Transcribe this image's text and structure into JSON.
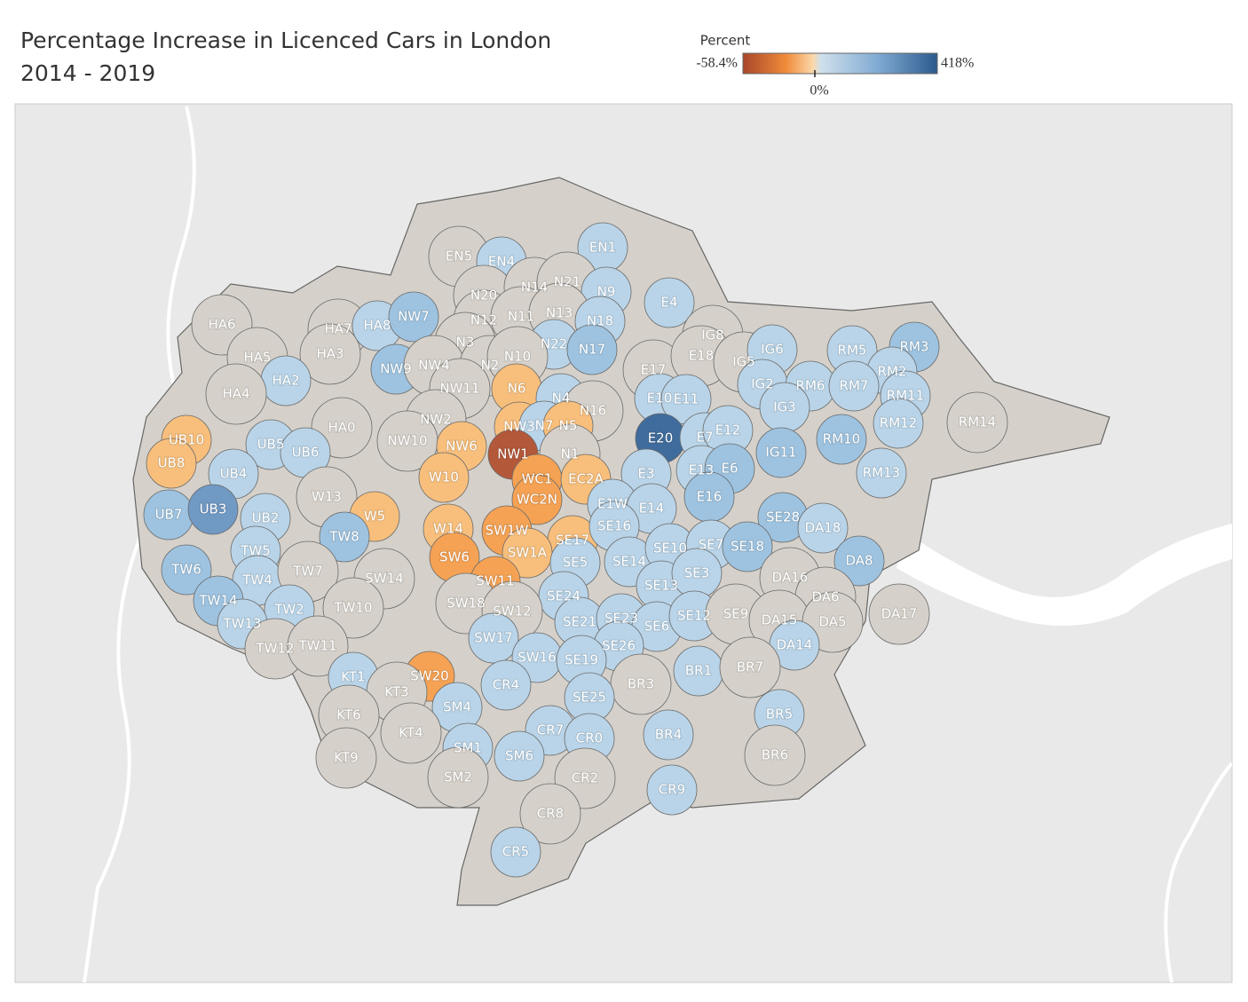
{
  "title": [
    "Percentage Increase in Licenced Cars in London",
    "2014 - 2019"
  ],
  "legend": {
    "title": "Percent",
    "lim": [
      -58.4,
      418
    ],
    "ticks": [
      {
        "value": -58.4,
        "label": "-58.4%"
      },
      {
        "value": 0,
        "label": "0%"
      },
      {
        "value": 418,
        "label": "418%"
      }
    ]
  },
  "districts": [
    {
      "label": "EN5",
      "color": "#d5d1ca"
    },
    {
      "label": "EN4",
      "color": "#b9d4e8"
    },
    {
      "label": "EN1",
      "color": "#b9d4e8"
    },
    {
      "label": "N20",
      "color": "#d5d1ca"
    },
    {
      "label": "N14",
      "color": "#d5d1ca"
    },
    {
      "label": "N21",
      "color": "#d5d1ca"
    },
    {
      "label": "N9",
      "color": "#b9d4e8"
    },
    {
      "label": "E4",
      "color": "#b9d4e8"
    },
    {
      "label": "HA6",
      "color": "#d5d1ca"
    },
    {
      "label": "HA7",
      "color": "#d5d1ca"
    },
    {
      "label": "HA8",
      "color": "#b9d4e8"
    },
    {
      "label": "NW7",
      "color": "#9ec3e0"
    },
    {
      "label": "N12",
      "color": "#d5d1ca"
    },
    {
      "label": "N11",
      "color": "#d5d1ca"
    },
    {
      "label": "N13",
      "color": "#d5d1ca"
    },
    {
      "label": "N18",
      "color": "#b9d4e8"
    },
    {
      "label": "IG8",
      "color": "#d5d1ca"
    },
    {
      "label": "RM5",
      "color": "#b9d4e8"
    },
    {
      "label": "RM3",
      "color": "#9ec3e0"
    },
    {
      "label": "HA5",
      "color": "#d5d1ca"
    },
    {
      "label": "HA3",
      "color": "#d5d1ca"
    },
    {
      "label": "N3",
      "color": "#d5d1ca"
    },
    {
      "label": "N22",
      "color": "#b9d4e8"
    },
    {
      "label": "N17",
      "color": "#9ec3e0"
    },
    {
      "label": "E17",
      "color": "#d5d1ca"
    },
    {
      "label": "E18",
      "color": "#d5d1ca"
    },
    {
      "label": "IG5",
      "color": "#d5d1ca"
    },
    {
      "label": "IG6",
      "color": "#b9d4e8"
    },
    {
      "label": "RM2",
      "color": "#b9d4e8"
    },
    {
      "label": "HA2",
      "color": "#b9d4e8"
    },
    {
      "label": "NW9",
      "color": "#9ec3e0"
    },
    {
      "label": "NW4",
      "color": "#d5d1ca"
    },
    {
      "label": "N2",
      "color": "#d5d1ca"
    },
    {
      "label": "N10",
      "color": "#d5d1ca"
    },
    {
      "label": "IG2",
      "color": "#b9d4e8"
    },
    {
      "label": "RM6",
      "color": "#b9d4e8"
    },
    {
      "label": "RM7",
      "color": "#b9d4e8"
    },
    {
      "label": "RM11",
      "color": "#b9d4e8"
    },
    {
      "label": "HA4",
      "color": "#d5d1ca"
    },
    {
      "label": "NW11",
      "color": "#d5d1ca"
    },
    {
      "label": "N6",
      "color": "#f8bf7c"
    },
    {
      "label": "N4",
      "color": "#b9d4e8"
    },
    {
      "label": "E10",
      "color": "#b9d4e8"
    },
    {
      "label": "E11",
      "color": "#b9d4e8"
    },
    {
      "label": "IG3",
      "color": "#b9d4e8"
    },
    {
      "label": "N16",
      "color": "#d5d1ca"
    },
    {
      "label": "NW2",
      "color": "#d5d1ca"
    },
    {
      "label": "NW3",
      "color": "#f8bf7c"
    },
    {
      "label": "N7",
      "color": "#b9d4e8"
    },
    {
      "label": "N5",
      "color": "#f8bf7c"
    },
    {
      "label": "RM12",
      "color": "#b9d4e8"
    },
    {
      "label": "RM14",
      "color": "#d5d1ca"
    },
    {
      "label": "UB10",
      "color": "#f8bf7c"
    },
    {
      "label": "UB5",
      "color": "#b9d4e8"
    },
    {
      "label": "HA0",
      "color": "#d5d1ca"
    },
    {
      "label": "NW10",
      "color": "#d5d1ca"
    },
    {
      "label": "NW6",
      "color": "#f8bf7c"
    },
    {
      "label": "E20",
      "color": "#3f6c9c"
    },
    {
      "label": "E7",
      "color": "#b9d4e8"
    },
    {
      "label": "E12",
      "color": "#b9d4e8"
    },
    {
      "label": "RM10",
      "color": "#9ec3e0"
    },
    {
      "label": "UB8",
      "color": "#f8bf7c"
    },
    {
      "label": "UB6",
      "color": "#b9d4e8"
    },
    {
      "label": "N1",
      "color": "#d5d1ca"
    },
    {
      "label": "NW1",
      "color": "#b4583a"
    },
    {
      "label": "IG11",
      "color": "#9ec3e0"
    },
    {
      "label": "UB4",
      "color": "#b9d4e8"
    },
    {
      "label": "W10",
      "color": "#f8bf7c"
    },
    {
      "label": "WC1",
      "color": "#f5a254"
    },
    {
      "label": "EC2A",
      "color": "#f8bf7c"
    },
    {
      "label": "E3",
      "color": "#b9d4e8"
    },
    {
      "label": "E13",
      "color": "#b9d4e8"
    },
    {
      "label": "E6",
      "color": "#9ec3e0"
    },
    {
      "label": "RM13",
      "color": "#b9d4e8"
    },
    {
      "label": "W13",
      "color": "#d5d1ca"
    },
    {
      "label": "WC2N",
      "color": "#f5a254"
    },
    {
      "label": "E1W",
      "color": "#b9d4e8"
    },
    {
      "label": "E14",
      "color": "#b9d4e8"
    },
    {
      "label": "E16",
      "color": "#9ec3e0"
    },
    {
      "label": "UB7",
      "color": "#9ec3e0"
    },
    {
      "label": "UB3",
      "color": "#7099c4"
    },
    {
      "label": "UB2",
      "color": "#b9d4e8"
    },
    {
      "label": "W5",
      "color": "#f8bf7c"
    },
    {
      "label": "SE28",
      "color": "#9ec3e0"
    },
    {
      "label": "DA18",
      "color": "#b9d4e8"
    },
    {
      "label": "W14",
      "color": "#f8bf7c"
    },
    {
      "label": "SW1W",
      "color": "#f5a254"
    },
    {
      "label": "SE17",
      "color": "#f8bf7c"
    },
    {
      "label": "SE16",
      "color": "#b9d4e8"
    },
    {
      "label": "TW8",
      "color": "#9ec3e0"
    },
    {
      "label": "TW5",
      "color": "#b9d4e8"
    },
    {
      "label": "SW6",
      "color": "#f5a254"
    },
    {
      "label": "SW1A",
      "color": "#f8bf7c"
    },
    {
      "label": "SE5",
      "color": "#b9d4e8"
    },
    {
      "label": "SE14",
      "color": "#b9d4e8"
    },
    {
      "label": "SE10",
      "color": "#b9d4e8"
    },
    {
      "label": "SE7",
      "color": "#b9d4e8"
    },
    {
      "label": "SE18",
      "color": "#9ec3e0"
    },
    {
      "label": "DA8",
      "color": "#9ec3e0"
    },
    {
      "label": "TW6",
      "color": "#9ec3e0"
    },
    {
      "label": "TW4",
      "color": "#b9d4e8"
    },
    {
      "label": "TW7",
      "color": "#d5d1ca"
    },
    {
      "label": "SW14",
      "color": "#d5d1ca"
    },
    {
      "label": "SW11",
      "color": "#f5a254"
    },
    {
      "label": "SE24",
      "color": "#b9d4e8"
    },
    {
      "label": "SE13",
      "color": "#b9d4e8"
    },
    {
      "label": "SE3",
      "color": "#b9d4e8"
    },
    {
      "label": "DA16",
      "color": "#d5d1ca"
    },
    {
      "label": "DA6",
      "color": "#d5d1ca"
    },
    {
      "label": "TW14",
      "color": "#9ec3e0"
    },
    {
      "label": "TW2",
      "color": "#b9d4e8"
    },
    {
      "label": "TW10",
      "color": "#d5d1ca"
    },
    {
      "label": "SW18",
      "color": "#d5d1ca"
    },
    {
      "label": "SW12",
      "color": "#d5d1ca"
    },
    {
      "label": "SE21",
      "color": "#b9d4e8"
    },
    {
      "label": "SE23",
      "color": "#b9d4e8"
    },
    {
      "label": "SE6",
      "color": "#b9d4e8"
    },
    {
      "label": "SE12",
      "color": "#b9d4e8"
    },
    {
      "label": "SE9",
      "color": "#d5d1ca"
    },
    {
      "label": "DA15",
      "color": "#d5d1ca"
    },
    {
      "label": "DA5",
      "color": "#d5d1ca"
    },
    {
      "label": "DA17",
      "color": "#d5d1ca"
    },
    {
      "label": "TW13",
      "color": "#b9d4e8"
    },
    {
      "label": "TW12",
      "color": "#d5d1ca"
    },
    {
      "label": "TW11",
      "color": "#d5d1ca"
    },
    {
      "label": "SW17",
      "color": "#b9d4e8"
    },
    {
      "label": "SE26",
      "color": "#b9d4e8"
    },
    {
      "label": "DA14",
      "color": "#b9d4e8"
    },
    {
      "label": "SW16",
      "color": "#b9d4e8"
    },
    {
      "label": "SE19",
      "color": "#b9d4e8"
    },
    {
      "label": "BR1",
      "color": "#b9d4e8"
    },
    {
      "label": "BR7",
      "color": "#d5d1ca"
    },
    {
      "label": "SW20",
      "color": "#f5a254"
    },
    {
      "label": "KT1",
      "color": "#b9d4e8"
    },
    {
      "label": "CR4",
      "color": "#b9d4e8"
    },
    {
      "label": "BR3",
      "color": "#d5d1ca"
    },
    {
      "label": "KT3",
      "color": "#d5d1ca"
    },
    {
      "label": "SE25",
      "color": "#b9d4e8"
    },
    {
      "label": "SM4",
      "color": "#b9d4e8"
    },
    {
      "label": "BR5",
      "color": "#b9d4e8"
    },
    {
      "label": "KT6",
      "color": "#d5d1ca"
    },
    {
      "label": "KT4",
      "color": "#d5d1ca"
    },
    {
      "label": "CR7",
      "color": "#b9d4e8"
    },
    {
      "label": "CR0",
      "color": "#b9d4e8"
    },
    {
      "label": "BR4",
      "color": "#b9d4e8"
    },
    {
      "label": "SM1",
      "color": "#b9d4e8"
    },
    {
      "label": "SM6",
      "color": "#b9d4e8"
    },
    {
      "label": "BR6",
      "color": "#d5d1ca"
    },
    {
      "label": "KT9",
      "color": "#d5d1ca"
    },
    {
      "label": "SM2",
      "color": "#d5d1ca"
    },
    {
      "label": "CR2",
      "color": "#d5d1ca"
    },
    {
      "label": "CR9",
      "color": "#b9d4e8"
    },
    {
      "label": "CR8",
      "color": "#d5d1ca"
    },
    {
      "label": "CR5",
      "color": "#b9d4e8"
    }
  ]
}
